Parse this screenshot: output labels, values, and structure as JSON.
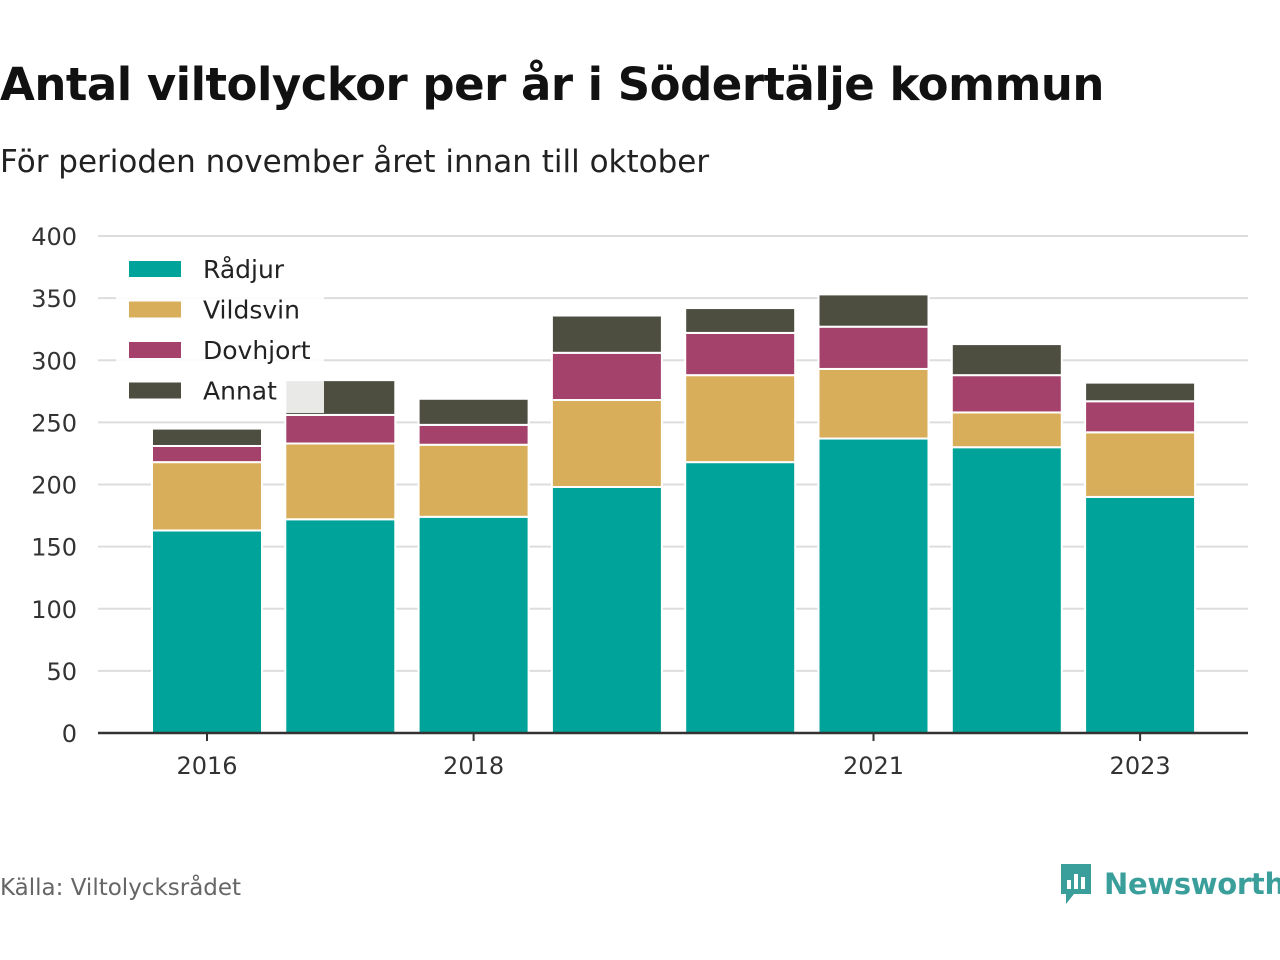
{
  "title": "Antal viltolyckor per år i Södertälje kommun",
  "subtitle": "För perioden november året innan till oktober",
  "source": "Källa: Viltolycksrådet",
  "brand": {
    "name": "Newsworthy",
    "icon": "newsworthy-logo-icon",
    "color": "#3a9e9b"
  },
  "chart_data": {
    "type": "bar",
    "stacked": true,
    "title": "Antal viltolyckor per år i Södertälje kommun",
    "subtitle": "För perioden november året innan till oktober",
    "categories": [
      "2016",
      "2017",
      "2018",
      "2019",
      "2020",
      "2021",
      "2022",
      "2023"
    ],
    "x_tick_labels": [
      "2016",
      "",
      "2018",
      "",
      "",
      "2021",
      "",
      "2023"
    ],
    "series": [
      {
        "name": "Rådjur",
        "color": "#00a399",
        "values": [
          163,
          172,
          174,
          198,
          218,
          237,
          230,
          190
        ]
      },
      {
        "name": "Vildsvin",
        "color": "#d9ae5b",
        "values": [
          55,
          61,
          58,
          70,
          70,
          56,
          28,
          52
        ]
      },
      {
        "name": "Dovhjort",
        "color": "#a4426c",
        "values": [
          13,
          23,
          16,
          38,
          34,
          34,
          30,
          25
        ]
      },
      {
        "name": "Annat",
        "color": "#4d4e40",
        "values": [
          14,
          28,
          21,
          30,
          20,
          26,
          25,
          15
        ]
      }
    ],
    "ylim": [
      0,
      400
    ],
    "y_ticks": [
      0,
      50,
      100,
      150,
      200,
      250,
      300,
      350,
      400
    ],
    "grid": true,
    "legend": "top-left",
    "xlabel": "",
    "ylabel": ""
  }
}
